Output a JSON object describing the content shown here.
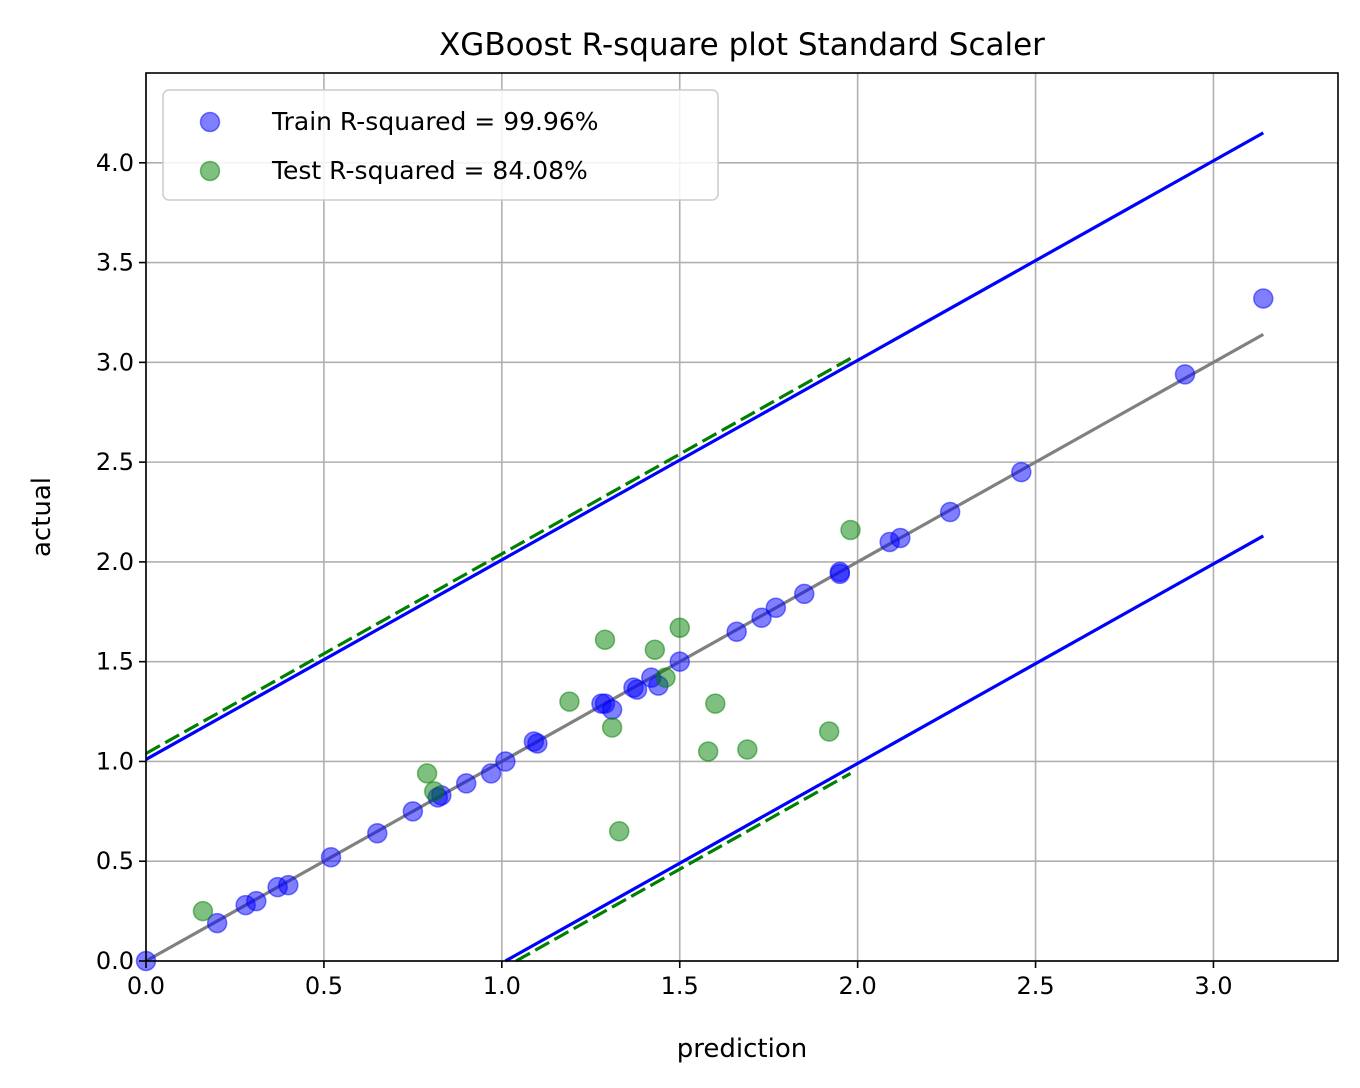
{
  "chart_data": {
    "type": "scatter",
    "title": "XGBoost R-square plot Standard Scaler",
    "xlabel": "prediction",
    "ylabel": "actual",
    "xlim": [
      0,
      3.35
    ],
    "ylim": [
      0,
      4.45
    ],
    "xticks": [
      0.0,
      0.5,
      1.0,
      1.5,
      2.0,
      2.5,
      3.0
    ],
    "xtick_labels": [
      "0.0",
      "0.5",
      "1.0",
      "1.5",
      "2.0",
      "2.5",
      "3.0"
    ],
    "yticks": [
      0.0,
      0.5,
      1.0,
      1.5,
      2.0,
      2.5,
      3.0,
      3.5,
      4.0
    ],
    "ytick_labels": [
      "0.0",
      "0.5",
      "1.0",
      "1.5",
      "2.0",
      "2.5",
      "3.0",
      "3.5",
      "4.0"
    ],
    "grid": true,
    "legend_position": "top-left",
    "series": [
      {
        "name": "Train R-squared = 99.96%",
        "color": "#0000ff",
        "points": [
          [
            0.0,
            0.0
          ],
          [
            0.2,
            0.19
          ],
          [
            0.28,
            0.28
          ],
          [
            0.31,
            0.3
          ],
          [
            0.37,
            0.37
          ],
          [
            0.4,
            0.38
          ],
          [
            0.52,
            0.52
          ],
          [
            0.65,
            0.64
          ],
          [
            0.75,
            0.75
          ],
          [
            0.82,
            0.82
          ],
          [
            0.83,
            0.83
          ],
          [
            0.9,
            0.89
          ],
          [
            0.97,
            0.94
          ],
          [
            1.01,
            1.0
          ],
          [
            1.09,
            1.1
          ],
          [
            1.1,
            1.09
          ],
          [
            1.28,
            1.29
          ],
          [
            1.29,
            1.29
          ],
          [
            1.31,
            1.26
          ],
          [
            1.37,
            1.37
          ],
          [
            1.38,
            1.36
          ],
          [
            1.42,
            1.42
          ],
          [
            1.44,
            1.38
          ],
          [
            1.5,
            1.5
          ],
          [
            1.66,
            1.65
          ],
          [
            1.73,
            1.72
          ],
          [
            1.77,
            1.77
          ],
          [
            1.85,
            1.84
          ],
          [
            1.95,
            1.95
          ],
          [
            1.95,
            1.94
          ],
          [
            2.09,
            2.1
          ],
          [
            2.12,
            2.12
          ],
          [
            2.26,
            2.25
          ],
          [
            2.46,
            2.45
          ],
          [
            2.92,
            2.94
          ],
          [
            3.14,
            3.32
          ]
        ]
      },
      {
        "name": "Test R-squared = 84.08%",
        "color": "#008000",
        "points": [
          [
            0.16,
            0.25
          ],
          [
            0.79,
            0.94
          ],
          [
            0.81,
            0.85
          ],
          [
            1.19,
            1.3
          ],
          [
            1.29,
            1.61
          ],
          [
            1.31,
            1.17
          ],
          [
            1.33,
            0.65
          ],
          [
            1.43,
            1.56
          ],
          [
            1.46,
            1.42
          ],
          [
            1.5,
            1.67
          ],
          [
            1.58,
            1.05
          ],
          [
            1.6,
            1.29
          ],
          [
            1.69,
            1.06
          ],
          [
            1.92,
            1.15
          ],
          [
            1.98,
            2.16
          ]
        ]
      }
    ],
    "reference_line": {
      "color": "#808080",
      "x": [
        0.0,
        3.14
      ],
      "y": [
        0.0,
        3.14
      ]
    },
    "band_lines": [
      {
        "color": "#0000ff",
        "style": "solid",
        "x": [
          0.0,
          3.14
        ],
        "y": [
          1.01,
          4.15
        ]
      },
      {
        "color": "#0000ff",
        "style": "solid",
        "x": [
          1.01,
          3.14
        ],
        "y": [
          0.0,
          2.13
        ]
      },
      {
        "color": "#008000",
        "style": "dashed",
        "x": [
          0.0,
          1.98
        ],
        "y": [
          1.04,
          3.02
        ]
      },
      {
        "color": "#008000",
        "style": "dashed",
        "x": [
          1.04,
          1.98
        ],
        "y": [
          0.0,
          0.94
        ]
      }
    ]
  }
}
